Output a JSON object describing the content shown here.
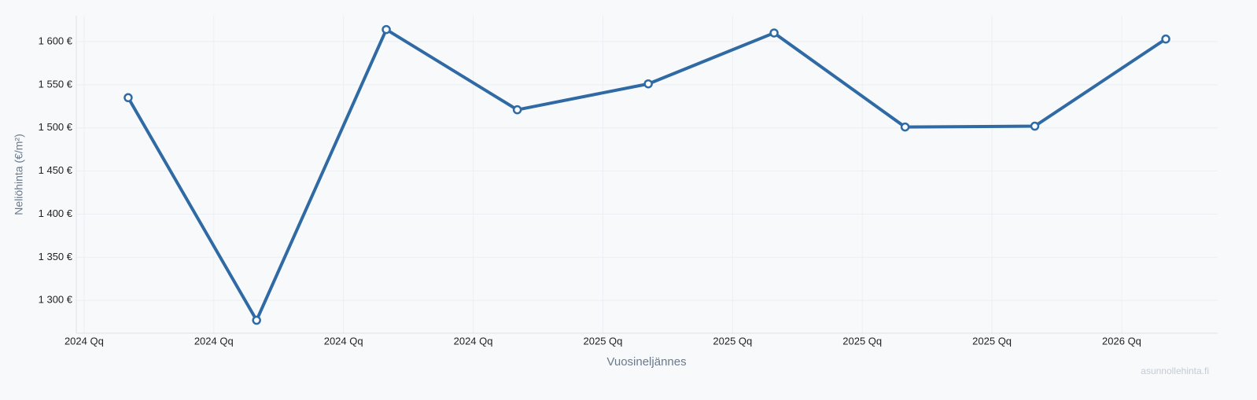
{
  "chart_data": {
    "type": "line",
    "x_label": "Vuosineljännes",
    "y_label": "Neliöhinta (€/m²)",
    "watermark": "asunnollehinta.fi",
    "x": [
      0.34,
      1.33,
      2.33,
      3.34,
      4.35,
      5.32,
      6.33,
      7.33,
      8.34
    ],
    "series": [
      {
        "color": "#2f6aa5",
        "values": [
          1535,
          1277,
          1614,
          1521,
          1551,
          1610,
          1501,
          1502,
          1603
        ]
      }
    ],
    "xlim": [
      -0.06,
      8.74
    ],
    "xticks": [
      {
        "value": 0,
        "label": "2024 Qq"
      },
      {
        "value": 1,
        "label": "2024 Qq"
      },
      {
        "value": 2,
        "label": "2024 Qq"
      },
      {
        "value": 3,
        "label": "2024 Qq"
      },
      {
        "value": 4,
        "label": "2025 Qq"
      },
      {
        "value": 5,
        "label": "2025 Qq"
      },
      {
        "value": 6,
        "label": "2025 Qq"
      },
      {
        "value": 7,
        "label": "2025 Qq"
      },
      {
        "value": 8,
        "label": "2026 Qq"
      }
    ],
    "ylim": [
      1262,
      1630
    ],
    "yticks": [
      {
        "value": 1300,
        "label": "1 300 €"
      },
      {
        "value": 1350,
        "label": "1 350 €"
      },
      {
        "value": 1400,
        "label": "1 400 €"
      },
      {
        "value": 1450,
        "label": "1 450 €"
      },
      {
        "value": 1500,
        "label": "1 500 €"
      },
      {
        "value": 1550,
        "label": "1 550 €"
      },
      {
        "value": 1600,
        "label": "1 600 €"
      }
    ],
    "grid": true
  }
}
